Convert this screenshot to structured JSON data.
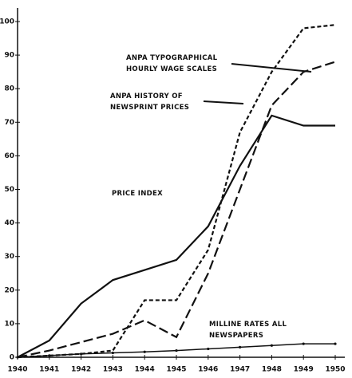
{
  "chart_data": {
    "type": "line",
    "x": [
      1940,
      1941,
      1942,
      1943,
      1944,
      1945,
      1946,
      1947,
      1948,
      1949,
      1950
    ],
    "xlim": [
      1940,
      1950
    ],
    "xticks": [
      1940,
      1941,
      1942,
      1943,
      1944,
      1945,
      1946,
      1947,
      1948,
      1949,
      1950
    ],
    "ylim": [
      0,
      100
    ],
    "yticks": [
      0,
      10,
      20,
      30,
      40,
      50,
      60,
      70,
      80,
      90,
      100
    ],
    "grid": false,
    "series": [
      {
        "name": "PRICE INDEX",
        "color": "#111111",
        "dash": "solid",
        "values": [
          0,
          5,
          16,
          23,
          26,
          29,
          39,
          57,
          72,
          69,
          69
        ]
      },
      {
        "name": "ANPA HISTORY OF NEWSPRINT PRICES",
        "color": "#111111",
        "dash": "short",
        "values": [
          0,
          0.5,
          1,
          2,
          17,
          17,
          32,
          67,
          85,
          98,
          99
        ]
      },
      {
        "name": "ANPA TYPOGRAPHICAL HOURLY WAGE SCALES",
        "color": "#111111",
        "dash": "long",
        "values": [
          0,
          2,
          4.5,
          7,
          11,
          6,
          25,
          50,
          75,
          85,
          88
        ]
      },
      {
        "name": "MILLINE RATES ALL NEWSPAPERS",
        "color": "#111111",
        "dash": "dotted",
        "values": [
          0,
          0.5,
          1,
          1.3,
          1.6,
          2,
          2.5,
          3,
          3.5,
          4,
          4
        ]
      }
    ]
  }
}
